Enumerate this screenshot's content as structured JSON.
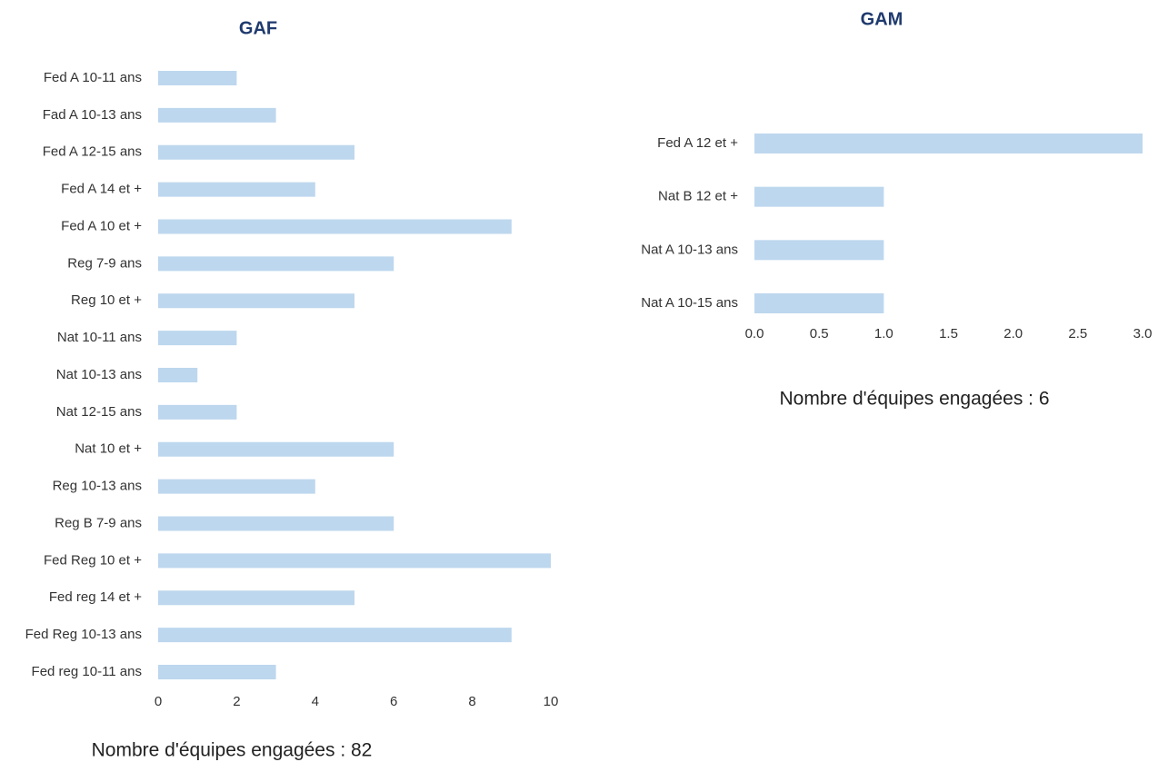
{
  "chart_data": [
    {
      "type": "bar",
      "orientation": "horizontal",
      "title": "GAF",
      "categories": [
        "Fed A 10-11 ans",
        "Fad A 10-13 ans",
        "Fed A 12-15 ans",
        "Fed A 14 et +",
        "Fed A 10 et +",
        "Reg 7-9 ans",
        "Reg 10 et +",
        "Nat 10-11 ans",
        "Nat 10-13 ans",
        "Nat 12-15 ans",
        "Nat 10 et +",
        "Reg 10-13 ans",
        "Reg B 7-9 ans",
        "Fed Reg 10 et +",
        "Fed reg 14 et +",
        "Fed Reg 10-13 ans",
        "Fed reg 10-11 ans"
      ],
      "values": [
        2,
        3,
        5,
        4,
        9,
        6,
        5,
        2,
        1,
        2,
        6,
        4,
        6,
        10,
        5,
        9,
        3
      ],
      "color": "#bdd7ee",
      "xlim": [
        0,
        10
      ],
      "xticks": [
        0,
        2,
        4,
        6,
        8,
        10
      ],
      "annotation": "Nombre d'équipes engagées : 82"
    },
    {
      "type": "bar",
      "orientation": "horizontal",
      "title": "GAM",
      "categories": [
        "Fed A 12 et +",
        "Nat B 12 et +",
        "Nat A 10-13 ans",
        "Nat A 10-15 ans"
      ],
      "values": [
        3,
        1,
        1,
        1
      ],
      "color": "#bdd7ee",
      "xlim": [
        0,
        3
      ],
      "xticks": [
        {
          "value": 0,
          "label": "0.0"
        },
        {
          "value": 0.5,
          "label": "0.5"
        },
        {
          "value": 1,
          "label": "1.0"
        },
        {
          "value": 1.5,
          "label": "1.5"
        },
        {
          "value": 2,
          "label": "2.0"
        },
        {
          "value": 2.5,
          "label": "2.5"
        },
        {
          "value": 3,
          "label": "3.0"
        }
      ],
      "annotation": "Nombre d'équipes engagées : 6"
    }
  ]
}
